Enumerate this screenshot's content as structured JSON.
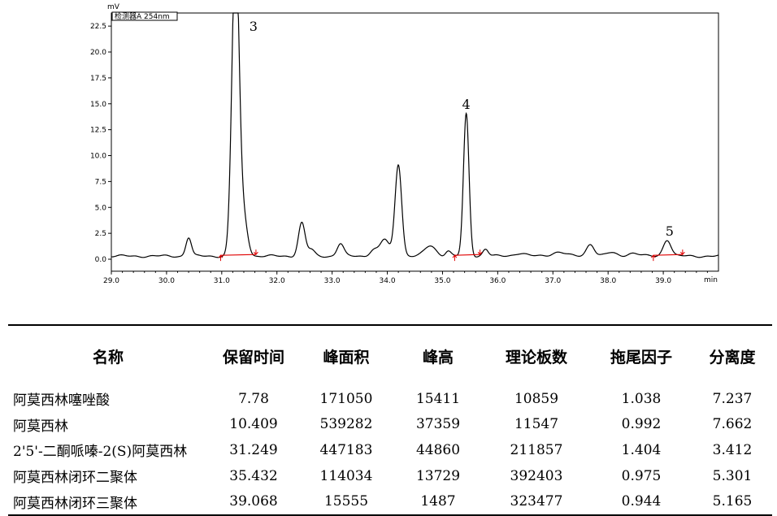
{
  "chart_data": {
    "type": "line",
    "y_unit": "mV",
    "x_unit": "min",
    "legend_label": "检测器A 254nm",
    "xlim": [
      29.0,
      40.0
    ],
    "ylim": [
      -1.0,
      24.0
    ],
    "x_ticks": [
      "29.0",
      "30.0",
      "31.0",
      "32.0",
      "33.0",
      "34.0",
      "35.0",
      "36.0",
      "37.0",
      "38.0",
      "39.0"
    ],
    "y_ticks": [
      "0.0",
      "2.5",
      "5.0",
      "7.5",
      "10.0",
      "12.5",
      "15.0",
      "17.5",
      "20.0",
      "22.5"
    ],
    "baseline": 0.3,
    "peaks": [
      {
        "t": 30.4,
        "h": 1.8,
        "w": 0.05
      },
      {
        "t": 31.25,
        "h": 30.0,
        "w": 0.065,
        "label": "3"
      },
      {
        "t": 31.4,
        "h": 3.5,
        "w": 0.07
      },
      {
        "t": 32.45,
        "h": 3.2,
        "w": 0.06
      },
      {
        "t": 32.62,
        "h": 0.6,
        "w": 0.06
      },
      {
        "t": 33.15,
        "h": 1.2,
        "w": 0.06
      },
      {
        "t": 33.75,
        "h": 0.6,
        "w": 0.07
      },
      {
        "t": 33.95,
        "h": 1.6,
        "w": 0.08
      },
      {
        "t": 34.2,
        "h": 8.9,
        "w": 0.06
      },
      {
        "t": 34.78,
        "h": 1.0,
        "w": 0.1
      },
      {
        "t": 35.1,
        "h": 0.5,
        "w": 0.05
      },
      {
        "t": 35.43,
        "h": 13.7,
        "w": 0.05,
        "label": "4"
      },
      {
        "t": 35.78,
        "h": 0.7,
        "w": 0.05
      },
      {
        "t": 36.4,
        "h": 0.3,
        "w": 0.1
      },
      {
        "t": 37.1,
        "h": 0.4,
        "w": 0.12
      },
      {
        "t": 37.68,
        "h": 1.2,
        "w": 0.07
      },
      {
        "t": 38.05,
        "h": 0.3,
        "w": 0.1
      },
      {
        "t": 38.45,
        "h": 0.3,
        "w": 0.1
      },
      {
        "t": 39.07,
        "h": 1.6,
        "w": 0.07,
        "label": "5"
      }
    ],
    "integration_marks": [
      {
        "start": 30.98,
        "end": 31.62
      },
      {
        "start": 35.22,
        "end": 35.68
      },
      {
        "start": 38.82,
        "end": 39.35
      }
    ]
  },
  "table": {
    "headers": [
      "名称",
      "保留时间",
      "峰面积",
      "峰高",
      "理论板数",
      "拖尾因子",
      "分离度"
    ],
    "rows": [
      [
        "阿莫西林噻唑酸",
        "7.78",
        "171050",
        "15411",
        "10859",
        "1.038",
        "7.237"
      ],
      [
        "阿莫西林",
        "10.409",
        "539282",
        "37359",
        "11547",
        "0.992",
        "7.662"
      ],
      [
        "2'5'-二酮哌嗪-2(S)阿莫西林",
        "31.249",
        "447183",
        "44860",
        "211857",
        "1.404",
        "3.412"
      ],
      [
        "阿莫西林闭环二聚体",
        "35.432",
        "114034",
        "13729",
        "392403",
        "0.975",
        "5.301"
      ],
      [
        "阿莫西林闭环三聚体",
        "39.068",
        "15555",
        "1487",
        "323477",
        "0.944",
        "5.165"
      ]
    ]
  }
}
